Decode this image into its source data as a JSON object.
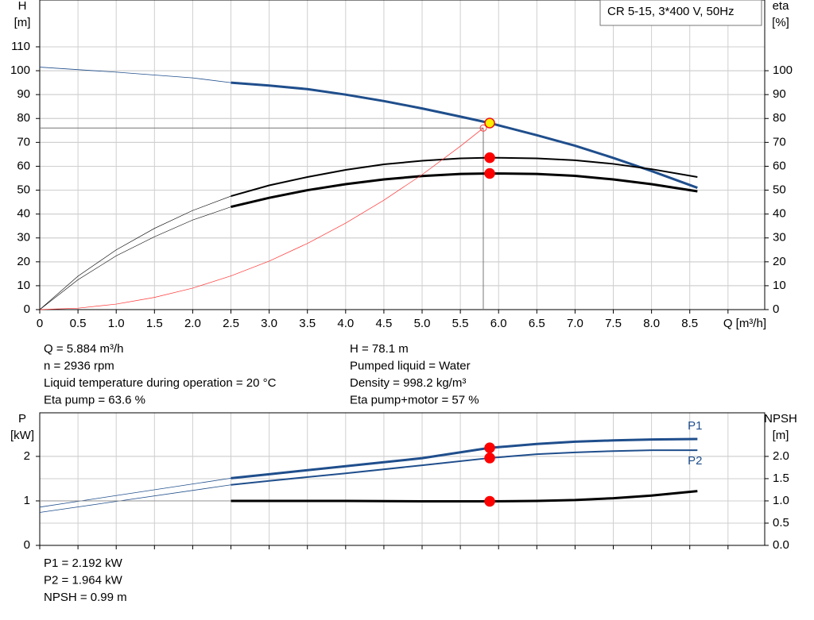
{
  "chart_data": [
    {
      "type": "line",
      "title": "CR 5-15, 3*400 V, 50Hz",
      "y_label": [
        "H",
        "[m]"
      ],
      "y2_label": [
        "eta",
        "[%]"
      ],
      "xlim": [
        0,
        9.48
      ],
      "ylim": [
        0,
        129.6
      ],
      "y2lim": [
        0,
        129.6
      ],
      "xticks": [
        0,
        0.5,
        {
          "value": 1,
          "label": "1.0"
        },
        1.5,
        {
          "value": 2,
          "label": "2.0"
        },
        2.5,
        {
          "value": 3,
          "label": "3.0"
        },
        3.5,
        {
          "value": 4,
          "label": "4.0"
        },
        4.5,
        {
          "value": 5,
          "label": "5.0"
        },
        5.5,
        {
          "value": 6,
          "label": "6.0"
        },
        6.5,
        {
          "value": 7,
          "label": "7.0"
        },
        7.5,
        {
          "value": 8,
          "label": "8.0"
        },
        8.5,
        {
          "value": 9,
          "label": "Q [m³/h]"
        }
      ],
      "yticks": [
        0,
        10,
        20,
        30,
        40,
        50,
        60,
        70,
        80,
        90,
        100,
        110
      ],
      "y2ticks": [
        0,
        10,
        20,
        30,
        40,
        50,
        60,
        70,
        80,
        90,
        100
      ],
      "grid": true,
      "series": [
        {
          "color": "#1f4e8c",
          "width": 0.8,
          "x": [
            0,
            1,
            2,
            2.5
          ],
          "values": [
            101.5,
            99.4,
            97,
            95
          ]
        },
        {
          "color": "#1f4e8c",
          "width": 3,
          "x": [
            2.5,
            3,
            3.5,
            4,
            4.5,
            5,
            5.5,
            5.884,
            6.5,
            7,
            7.5,
            8,
            8.6
          ],
          "values": [
            95,
            93.8,
            92.3,
            90,
            87.3,
            84.2,
            80.8,
            78.1,
            73,
            68.6,
            63.5,
            58,
            51
          ]
        },
        {
          "color": "#000000",
          "width": 0.6,
          "axis": "y2",
          "x": [
            0,
            0.5,
            1,
            1.5,
            2,
            2.5
          ],
          "values": [
            0,
            14,
            25,
            34,
            41.5,
            47.5
          ]
        },
        {
          "color": "#000000",
          "width": 2,
          "axis": "y2",
          "x": [
            2.5,
            3,
            3.5,
            4,
            4.5,
            5,
            5.5,
            5.884,
            6.5,
            7,
            7.5,
            8,
            8.6
          ],
          "values": [
            47.5,
            52,
            55.5,
            58.5,
            60.8,
            62.3,
            63.3,
            63.6,
            63.3,
            62.5,
            61,
            58.8,
            55.5
          ]
        },
        {
          "color": "#000000",
          "width": 0.6,
          "axis": "y2",
          "x": [
            0,
            0.5,
            1,
            1.5,
            2,
            2.5
          ],
          "values": [
            0,
            12.5,
            22.5,
            30.5,
            37.5,
            43
          ]
        },
        {
          "color": "#000000",
          "width": 3,
          "axis": "y2",
          "x": [
            2.5,
            3,
            3.5,
            4,
            4.5,
            5,
            5.5,
            5.884,
            6.5,
            7,
            7.5,
            8,
            8.6
          ],
          "values": [
            43,
            46.8,
            50,
            52.5,
            54.5,
            55.9,
            56.8,
            57,
            56.8,
            56,
            54.5,
            52.5,
            49.5
          ]
        },
        {
          "color": "#ff3333",
          "width": 0.7,
          "x": [
            0,
            0.5,
            1,
            1.5,
            2,
            2.5,
            3,
            3.5,
            4,
            4.5,
            5,
            5.5,
            5.8
          ],
          "values": [
            0,
            0.6,
            2.3,
            5.1,
            9,
            14.1,
            20.3,
            27.7,
            36.2,
            45.8,
            56.5,
            68.4,
            76
          ]
        }
      ],
      "crosshair": {
        "x": 5.8,
        "y": 76
      },
      "points": [
        {
          "x": 5.884,
          "y": 78.1,
          "fill": "#ffee00",
          "stroke": "#ee1111"
        },
        {
          "x": 5.884,
          "y": 63.6,
          "fill": "#ff0000",
          "stroke": "#ff0000"
        },
        {
          "x": 5.884,
          "y": 57,
          "fill": "#ff0000",
          "stroke": "#ff0000"
        }
      ],
      "info": [
        [
          "Q = 5.884 m³/h",
          "n = 2936 rpm",
          "Liquid temperature during operation = 20 °C",
          "Eta pump = 63.6 %"
        ],
        [
          "H = 78.1 m",
          "Pumped liquid = Water",
          "Density = 998.2 kg/m³",
          "Eta pump+motor = 57 %"
        ]
      ]
    },
    {
      "type": "line",
      "y_label": [
        "P",
        "[kW]"
      ],
      "y2_label": [
        "NPSH",
        "[m]"
      ],
      "xlim": [
        0,
        9.48
      ],
      "ylim": [
        0,
        2.98
      ],
      "y2lim": [
        0,
        2.98
      ],
      "xticks": [
        0,
        0.5,
        1,
        1.5,
        2,
        2.5,
        3,
        3.5,
        4,
        4.5,
        5,
        5.5,
        6,
        6.5,
        7,
        7.5,
        8,
        8.5,
        9
      ],
      "xtick_labels": false,
      "yticks": [
        0,
        1,
        2
      ],
      "y2ticks": [
        {
          "value": 0,
          "label": "0.0"
        },
        0.5,
        {
          "value": 1,
          "label": "1.0"
        },
        1.5,
        {
          "value": 2,
          "label": "2.0"
        }
      ],
      "grid": true,
      "series": [
        {
          "color": "#1f4e8c",
          "width": 0.8,
          "x": [
            0,
            2.5
          ],
          "values": [
            0.86,
            1.51
          ]
        },
        {
          "label": "P1",
          "color": "#1f4e8c",
          "width": 3,
          "x": [
            2.5,
            3,
            4,
            5,
            5.884,
            6.5,
            7,
            7.5,
            8,
            8.6
          ],
          "values": [
            1.51,
            1.6,
            1.78,
            1.96,
            2.192,
            2.28,
            2.33,
            2.36,
            2.38,
            2.39
          ]
        },
        {
          "color": "#1f4e8c",
          "width": 0.8,
          "x": [
            0,
            2.5
          ],
          "values": [
            0.74,
            1.36
          ]
        },
        {
          "label": "P2",
          "color": "#1f4e8c",
          "width": 2,
          "x": [
            2.5,
            3,
            4,
            5,
            5.884,
            6.5,
            7,
            7.5,
            8,
            8.6
          ],
          "values": [
            1.36,
            1.45,
            1.62,
            1.8,
            1.964,
            2.05,
            2.09,
            2.12,
            2.14,
            2.14
          ]
        },
        {
          "color": "#888888",
          "width": 0.8,
          "axis": "y2",
          "x": [
            0,
            2.5
          ],
          "values": [
            1,
            1
          ]
        },
        {
          "color": "#000000",
          "width": 3,
          "axis": "y2",
          "x": [
            2.5,
            4,
            5,
            5.884,
            6.5,
            7,
            7.5,
            8,
            8.6
          ],
          "values": [
            1,
            1,
            0.99,
            0.99,
            1,
            1.02,
            1.06,
            1.12,
            1.22
          ]
        }
      ],
      "points": [
        {
          "x": 5.884,
          "y": 2.192,
          "fill": "#ff0000",
          "stroke": "#ff0000"
        },
        {
          "x": 5.884,
          "y": 1.964,
          "fill": "#ff0000",
          "stroke": "#ff0000"
        },
        {
          "x": 5.884,
          "y": 0.99,
          "fill": "#ff0000",
          "stroke": "#ff0000"
        }
      ],
      "info": [
        [
          "P1 = 2.192 kW",
          "P2 = 1.964 kW",
          "NPSH = 0.99 m"
        ]
      ]
    }
  ]
}
